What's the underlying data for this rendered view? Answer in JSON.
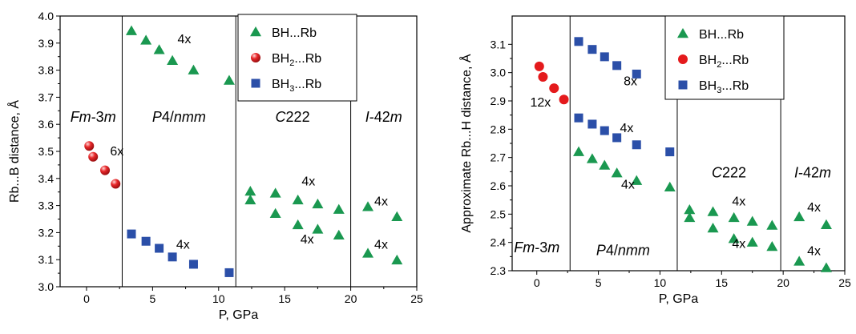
{
  "chart_data": [
    {
      "type": "scatter",
      "xlabel": "P, GPa",
      "ylabel": "Rb...B distance, Å",
      "xlim": [
        -2,
        25
      ],
      "ylim": [
        3.0,
        4.0
      ],
      "xticks": [
        "0",
        "5",
        "10",
        "15",
        "20",
        "25"
      ],
      "xtick_values": [
        0,
        5,
        10,
        15,
        20,
        25
      ],
      "yticks": [
        "3.0",
        "3.1",
        "3.2",
        "3.3",
        "3.4",
        "3.5",
        "3.6",
        "3.7",
        "3.8",
        "3.9",
        "4.0"
      ],
      "ytick_values": [
        3.0,
        3.1,
        3.2,
        3.3,
        3.4,
        3.5,
        3.6,
        3.7,
        3.8,
        3.9,
        4.0
      ],
      "phase_boundaries": [
        2.7,
        11.3,
        20.0
      ],
      "phases": [
        {
          "label": "Fm-3m",
          "x": 0.5,
          "y": 3.61
        },
        {
          "label": "P4/nmm",
          "x": 7.0,
          "y": 3.61
        },
        {
          "label": "C222",
          "x": 15.6,
          "y": 3.61
        },
        {
          "label": "I-42m",
          "x": 22.5,
          "y": 3.61
        }
      ],
      "annotations": [
        {
          "text": "4x",
          "x": 7.4,
          "y": 3.9
        },
        {
          "text": "6x",
          "x": 2.3,
          "y": 3.485
        },
        {
          "text": "4x",
          "x": 16.8,
          "y": 3.375
        },
        {
          "text": "4x",
          "x": 16.7,
          "y": 3.16
        },
        {
          "text": "4x",
          "x": 22.3,
          "y": 3.3
        },
        {
          "text": "4x",
          "x": 22.3,
          "y": 3.14
        },
        {
          "text": "4x",
          "x": 7.3,
          "y": 3.14
        }
      ],
      "legend": {
        "position": "top-right",
        "items": [
          {
            "label": "BH...Rb",
            "sub": "",
            "tail": "",
            "marker": "triangle"
          },
          {
            "label": "BH",
            "sub": "2",
            "tail": "...Rb",
            "marker": "sphere"
          },
          {
            "label": "BH",
            "sub": "3",
            "tail": "...Rb",
            "marker": "square"
          }
        ]
      },
      "series": [
        {
          "marker": "triangle",
          "color": "#1a9850",
          "x": [
            3.4,
            4.5,
            5.5,
            6.5,
            8.1,
            10.8,
            12.4,
            12.4,
            14.3,
            14.3,
            16.0,
            16.0,
            17.5,
            17.5,
            19.1,
            19.1,
            21.3,
            21.3,
            23.5,
            23.5
          ],
          "y": [
            3.945,
            3.91,
            3.875,
            3.835,
            3.8,
            3.762,
            3.352,
            3.32,
            3.345,
            3.27,
            3.32,
            3.228,
            3.305,
            3.212,
            3.285,
            3.19,
            3.295,
            3.123,
            3.258,
            3.098
          ]
        },
        {
          "marker": "sphere",
          "color": "#e41a1c",
          "x": [
            0.2,
            0.5,
            1.4,
            2.2
          ],
          "y": [
            3.52,
            3.48,
            3.43,
            3.38
          ]
        },
        {
          "marker": "square",
          "color": "#2b4fa8",
          "x": [
            3.4,
            4.5,
            5.5,
            6.5,
            8.1,
            10.8
          ],
          "y": [
            3.195,
            3.168,
            3.142,
            3.11,
            3.083,
            3.052
          ]
        }
      ]
    },
    {
      "type": "scatter",
      "xlabel": "P, GPa",
      "ylabel": "Approximate Rb...H distance, Å",
      "xlim": [
        -2,
        25
      ],
      "ylim": [
        2.3,
        3.2
      ],
      "xticks": [
        "0",
        "5",
        "10",
        "15",
        "20",
        "25"
      ],
      "xtick_values": [
        0,
        5,
        10,
        15,
        20,
        25
      ],
      "yticks": [
        "2.3",
        "2.4",
        "2.5",
        "2.6",
        "2.7",
        "2.8",
        "2.9",
        "3.0",
        "3.1"
      ],
      "ytick_values": [
        2.3,
        2.4,
        2.5,
        2.6,
        2.7,
        2.8,
        2.9,
        3.0,
        3.1
      ],
      "phase_boundaries": [
        2.7,
        11.4,
        19.8
      ],
      "phases": [
        {
          "label": "Fm-3m",
          "x": 0.0,
          "y": 2.365
        },
        {
          "label": "P4/nmm",
          "x": 7.0,
          "y": 2.355
        },
        {
          "label": "C222",
          "x": 15.6,
          "y": 2.63
        },
        {
          "label": "I-42m",
          "x": 22.4,
          "y": 2.63
        }
      ],
      "annotations": [
        {
          "text": "8x",
          "x": 7.6,
          "y": 2.955
        },
        {
          "text": "12x",
          "x": 0.3,
          "y": 2.88
        },
        {
          "text": "4x",
          "x": 7.3,
          "y": 2.79
        },
        {
          "text": "4x",
          "x": 7.4,
          "y": 2.59
        },
        {
          "text": "4x",
          "x": 16.4,
          "y": 2.53
        },
        {
          "text": "4x",
          "x": 16.4,
          "y": 2.38
        },
        {
          "text": "4x",
          "x": 22.5,
          "y": 2.51
        },
        {
          "text": "4x",
          "x": 22.5,
          "y": 2.355
        }
      ],
      "legend": {
        "position": "top-right",
        "items": [
          {
            "label": "BH...Rb",
            "sub": "",
            "tail": "",
            "marker": "triangle"
          },
          {
            "label": "BH",
            "sub": "2",
            "tail": "...Rb",
            "marker": "circle"
          },
          {
            "label": "BH",
            "sub": "3",
            "tail": "...Rb",
            "marker": "square"
          }
        ]
      },
      "series": [
        {
          "marker": "triangle",
          "color": "#1a9850",
          "x": [
            3.4,
            4.5,
            5.5,
            6.5,
            8.1,
            10.8,
            12.4,
            12.4,
            14.3,
            14.3,
            16.0,
            16.0,
            17.5,
            17.5,
            19.1,
            19.1,
            21.3,
            21.3,
            23.5,
            23.5
          ],
          "y": [
            2.72,
            2.695,
            2.672,
            2.645,
            2.618,
            2.595,
            2.515,
            2.487,
            2.508,
            2.45,
            2.487,
            2.413,
            2.474,
            2.4,
            2.46,
            2.385,
            2.49,
            2.333,
            2.462,
            2.31
          ]
        },
        {
          "marker": "circle",
          "color": "#e41a1c",
          "x": [
            0.2,
            0.5,
            1.4,
            2.2
          ],
          "y": [
            3.022,
            2.985,
            2.945,
            2.905
          ]
        },
        {
          "marker": "square",
          "color": "#2b4fa8",
          "x": [
            3.4,
            4.5,
            5.5,
            6.5,
            8.1,
            10.8,
            3.4,
            4.5,
            5.5,
            6.5,
            8.1,
            10.8
          ],
          "y": [
            3.11,
            3.082,
            3.056,
            3.025,
            2.995,
            2.963,
            2.84,
            2.818,
            2.795,
            2.77,
            2.745,
            2.72
          ]
        }
      ]
    }
  ]
}
